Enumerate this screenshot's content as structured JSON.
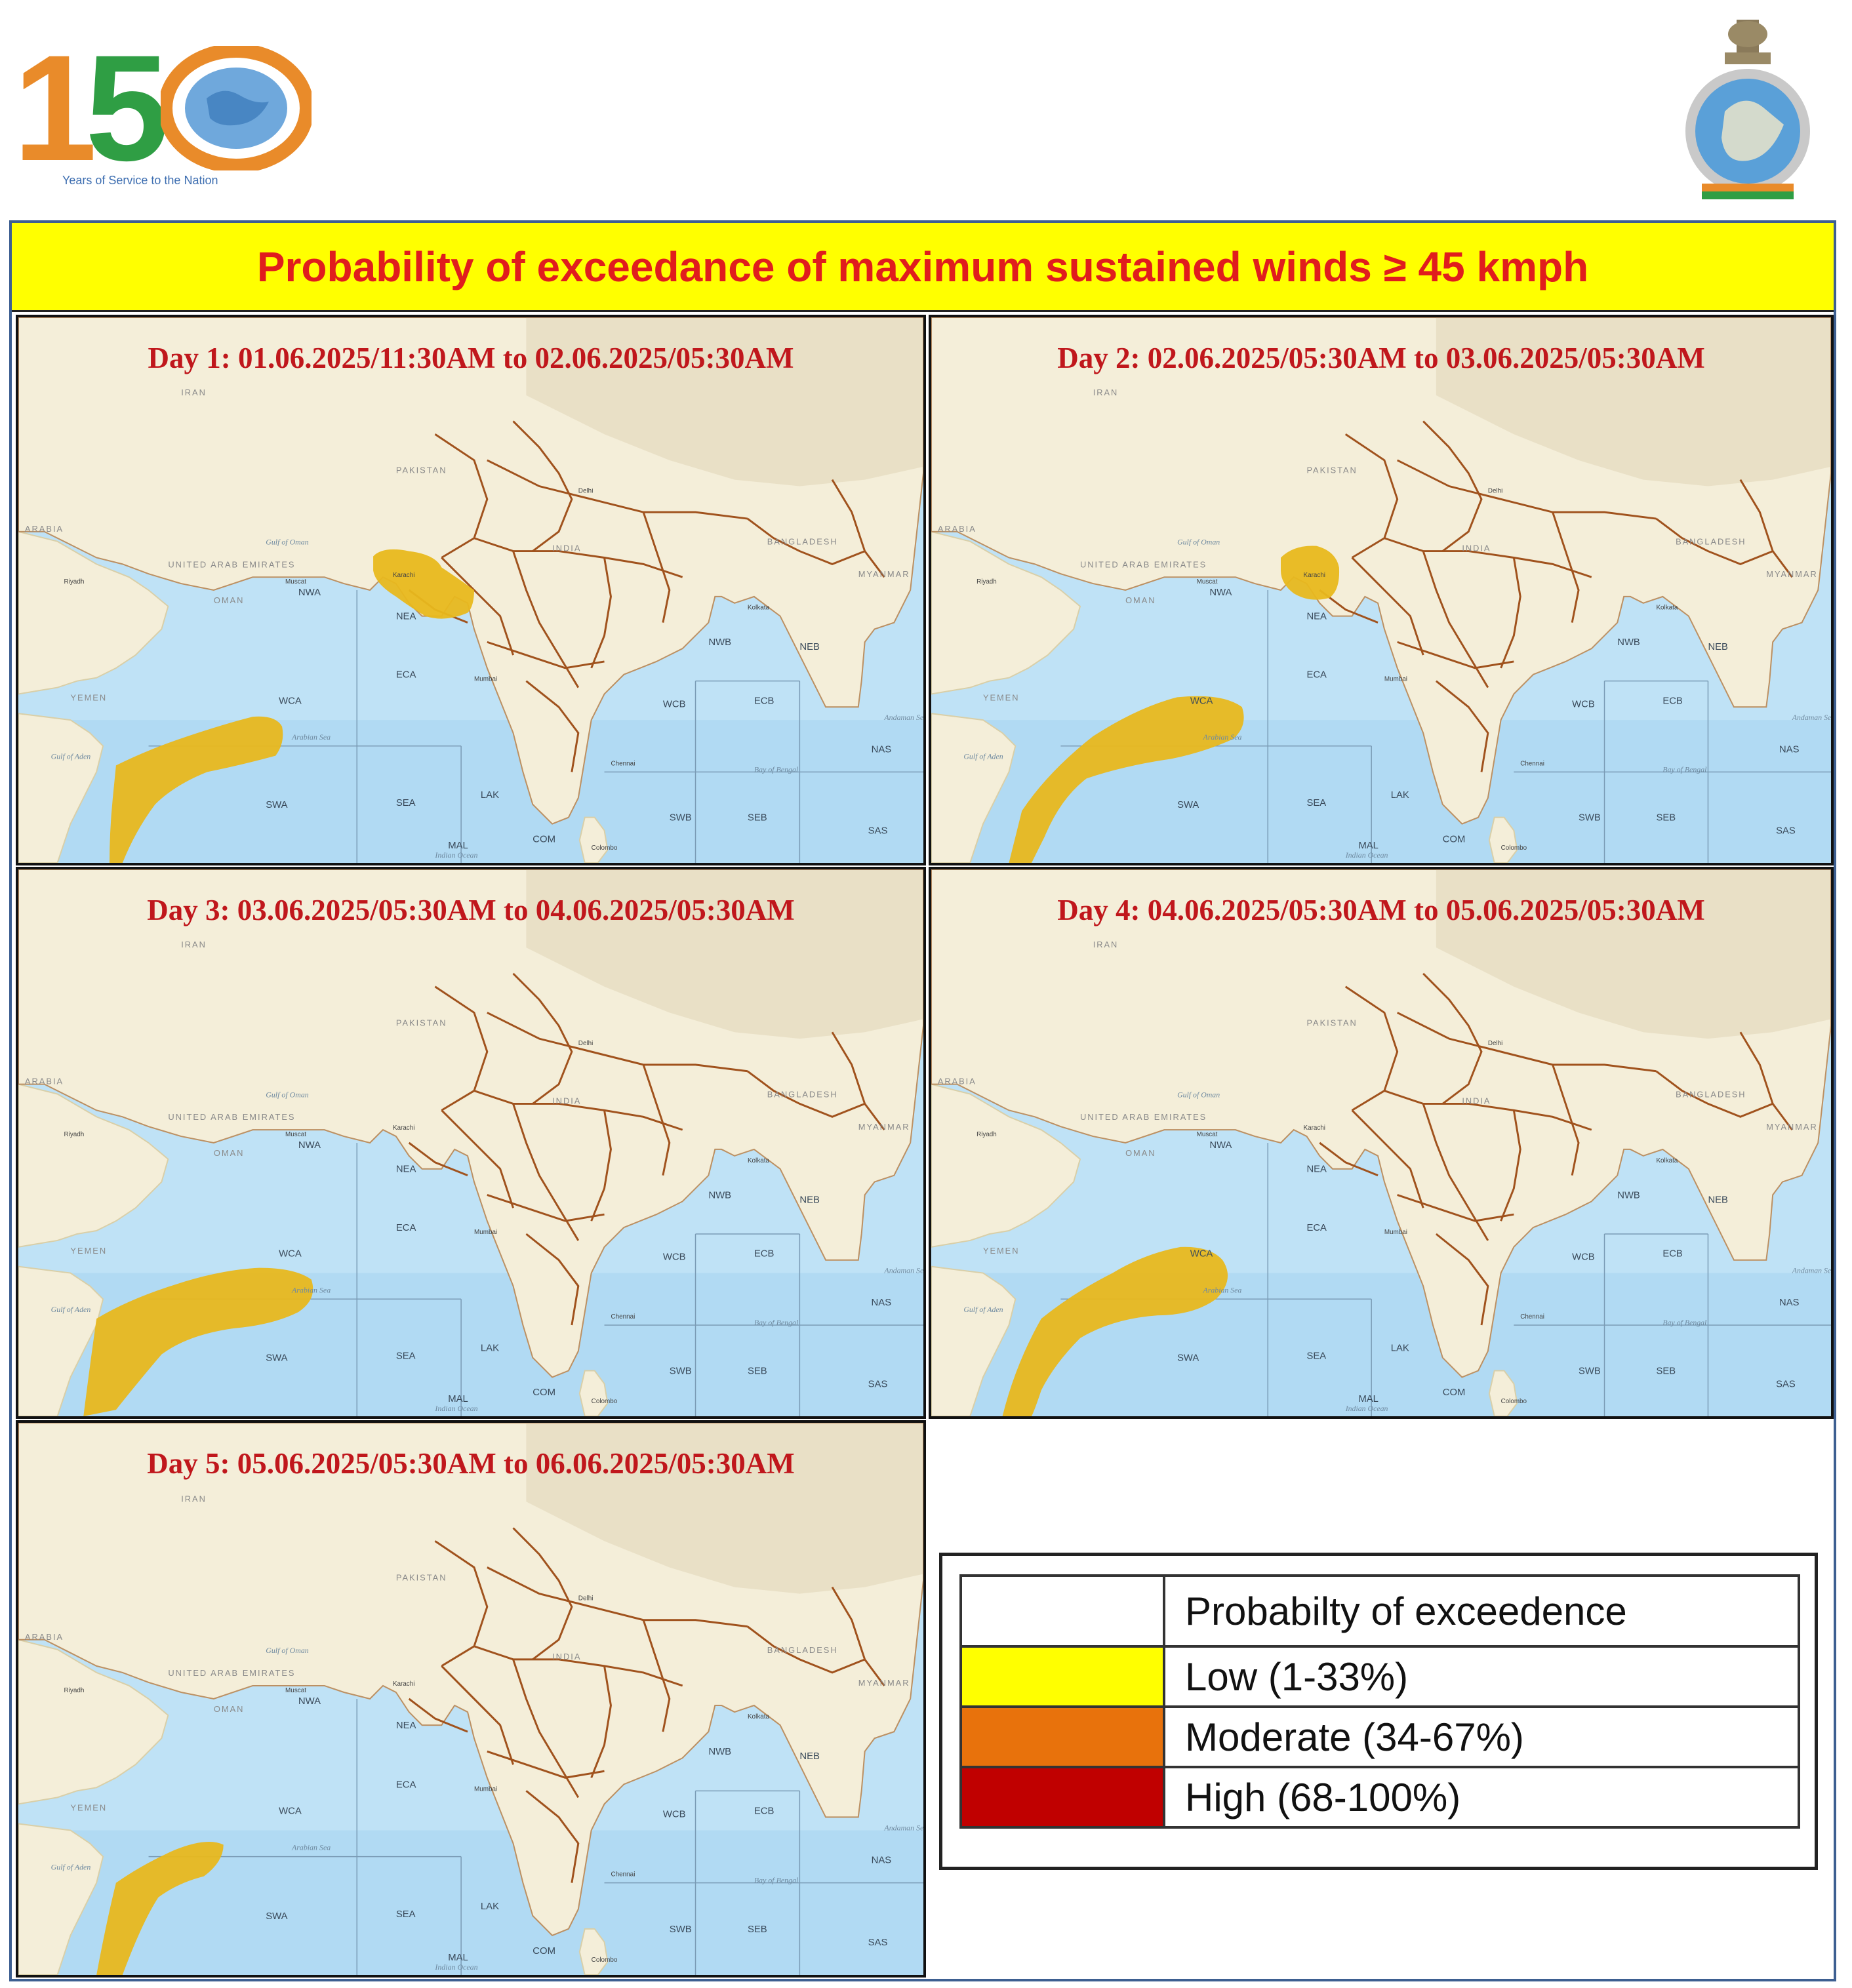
{
  "header": {
    "logo_left": {
      "digits": "150",
      "tagline": "Years of Service to the Nation"
    },
    "logo_right": {
      "name": "imd-emblem"
    }
  },
  "title": "Probability  of exceedance of maximum  sustained  winds ≥ 45 kmph",
  "colors": {
    "title_bg": "#ffff00",
    "title_text": "#e01d1d",
    "day_text": "#c0171c",
    "sea": "#bfe2f6",
    "land": "#f4eed9",
    "state_borders": "#a0521d",
    "low": "#ffff00",
    "moderate": "#e8720c",
    "high": "#c00000",
    "forecast_area_fill": "#e8b81e"
  },
  "map_labels": {
    "countries": [
      "IRAN",
      "PAKISTAN",
      "INDIA",
      "BANGLADESH",
      "MYANMAR",
      "UNITED ARAB EMIRATES",
      "YEMEN",
      "OMAN",
      "ARABIA"
    ],
    "sea_regions": [
      "NWA",
      "NEA",
      "ECA",
      "WCA",
      "SWA",
      "SEA",
      "LAK",
      "MAL",
      "COM",
      "WCB",
      "ECB",
      "NWB",
      "NEB",
      "SWB",
      "SEB",
      "NAS",
      "SAS"
    ],
    "water_bodies": [
      "Arabian Sea",
      "Bay of Bengal",
      "Gulf of Aden",
      "Gulf of Oman",
      "Andaman Sea",
      "Indian Ocean"
    ],
    "cities": [
      "Karachi",
      "Riyadh",
      "Muscat",
      "Delhi",
      "Mumbai",
      "Kolkata",
      "Chennai",
      "Colombo"
    ]
  },
  "panels": [
    {
      "day_label": "Day 1: 01.06.2025/11:30AM  to 02.06.2025/05:30AM",
      "areas": [
        {
          "region": "NEA / Gujarat coast",
          "level": "low"
        },
        {
          "region": "SWA / Gulf of Aden",
          "level": "low"
        }
      ]
    },
    {
      "day_label": "Day 2:  02.06.2025/05:30AM  to 03.06.2025/05:30AM",
      "areas": [
        {
          "region": "NEA",
          "level": "low"
        },
        {
          "region": "WCA / SWA",
          "level": "low"
        }
      ]
    },
    {
      "day_label": "Day 3:  03.06.2025/05:30AM  to 04.06.2025/05:30AM",
      "areas": [
        {
          "region": "WCA / SWA",
          "level": "low"
        }
      ]
    },
    {
      "day_label": "Day 4:  04.06.2025/05:30AM  to 05.06.2025/05:30AM",
      "areas": [
        {
          "region": "WCA / SWA",
          "level": "low"
        }
      ]
    },
    {
      "day_label": "Day 5:  05.06.2025/05:30AM  to 06.06.2025/05:30AM",
      "areas": [
        {
          "region": "WCA / SWA",
          "level": "low"
        }
      ]
    }
  ],
  "legend": {
    "header": "Probabilty of exceedence",
    "rows": [
      {
        "label": "Low (1-33%)",
        "color": "#ffff00"
      },
      {
        "label": "Moderate (34-67%)",
        "color": "#e8720c"
      },
      {
        "label": "High (68-100%)",
        "color": "#c00000"
      }
    ]
  }
}
